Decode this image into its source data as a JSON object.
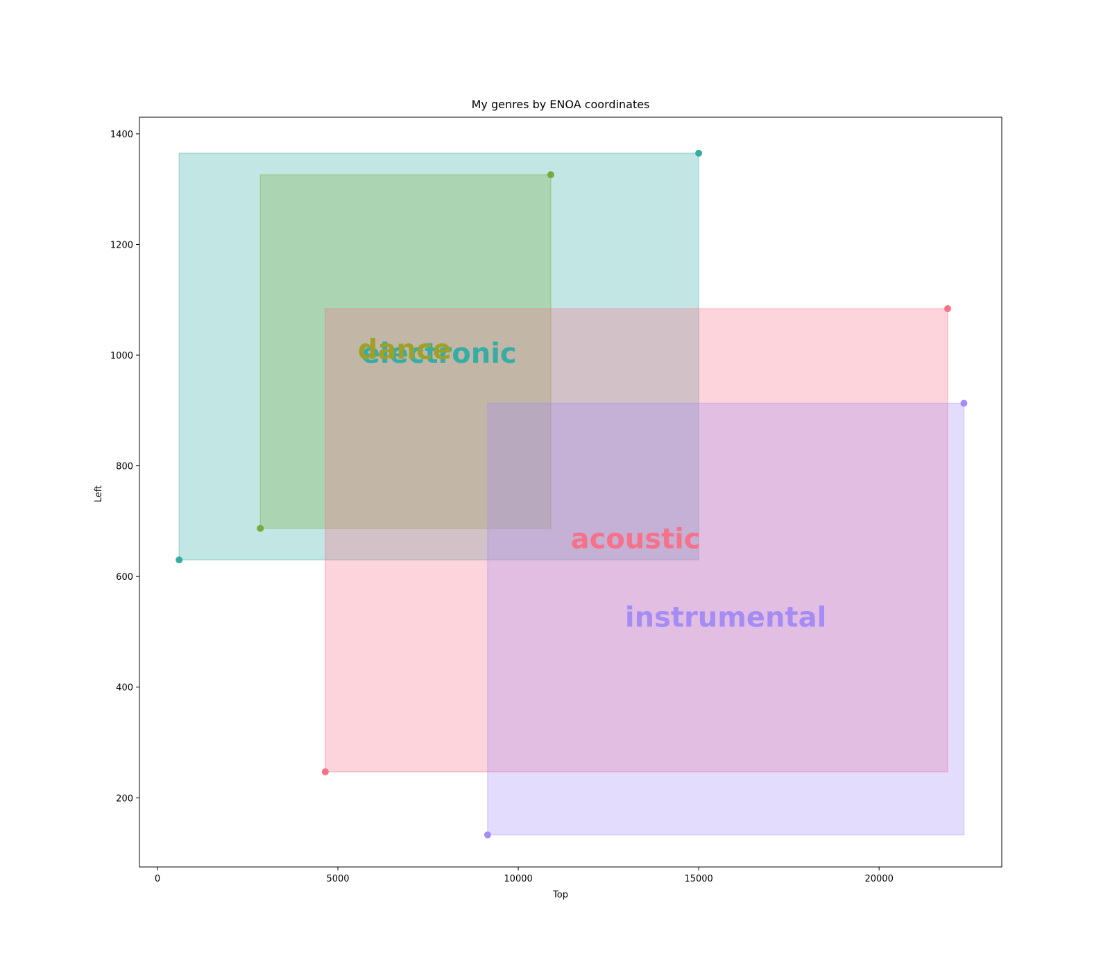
{
  "chart_data": {
    "type": "scatter",
    "title": "My genres by ENOA coordinates",
    "xlabel": "Top",
    "ylabel": "Left",
    "xlim": [
      -500,
      23400
    ],
    "ylim": [
      75,
      1430
    ],
    "xticks": [
      0,
      5000,
      10000,
      15000,
      20000
    ],
    "yticks": [
      200,
      400,
      600,
      800,
      1000,
      1200,
      1400
    ],
    "grid": false,
    "series": [
      {
        "name": "electronic",
        "color": "#36ADA4",
        "rect": {
          "x0": 600,
          "y0": 630,
          "x1": 15000,
          "y1": 1365
        },
        "points": [
          {
            "x": 600,
            "y": 630
          },
          {
            "x": 15000,
            "y": 1365
          }
        ],
        "label_pos": {
          "x": 7800,
          "y": 1000
        }
      },
      {
        "name": "dance",
        "color": "#77AB41",
        "label_color": "#9EA02A",
        "rect": {
          "x0": 2850,
          "y0": 687,
          "x1": 10900,
          "y1": 1326
        },
        "points": [
          {
            "x": 2850,
            "y": 687
          },
          {
            "x": 10900,
            "y": 1326
          }
        ],
        "label_pos": {
          "x": 6850,
          "y": 1007
        }
      },
      {
        "name": "acoustic",
        "color": "#F77189",
        "rect": {
          "x0": 4650,
          "y0": 247,
          "x1": 21900,
          "y1": 1084
        },
        "points": [
          {
            "x": 4650,
            "y": 247
          },
          {
            "x": 21900,
            "y": 1084
          }
        ],
        "label_pos": {
          "x": 13250,
          "y": 665
        }
      },
      {
        "name": "instrumental",
        "color": "#A48CF4",
        "rect": {
          "x0": 9150,
          "y0": 133,
          "x1": 22350,
          "y1": 913
        },
        "points": [
          {
            "x": 9150,
            "y": 133
          },
          {
            "x": 22350,
            "y": 913
          }
        ],
        "label_pos": {
          "x": 15750,
          "y": 523
        }
      }
    ]
  }
}
